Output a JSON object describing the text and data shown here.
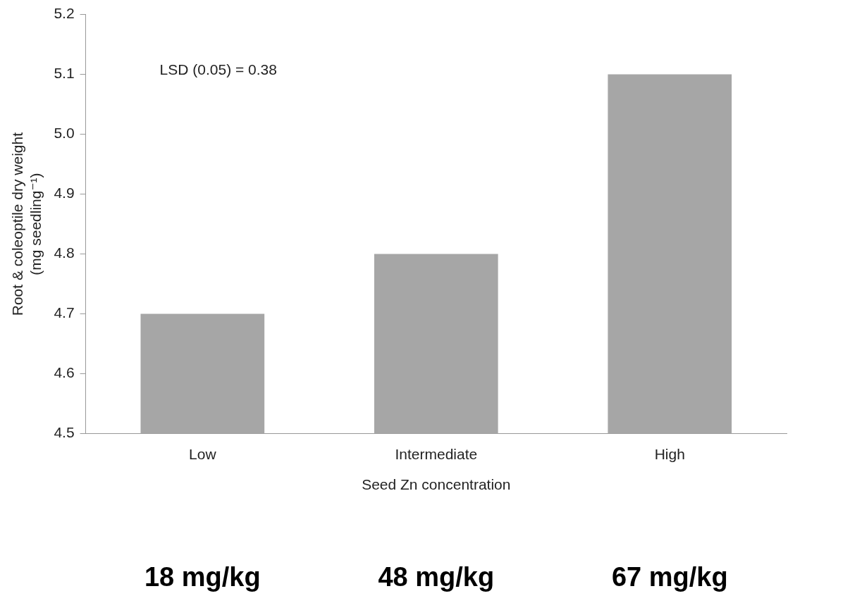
{
  "chart_data": {
    "type": "bar",
    "xlabel": "Seed Zn concentration",
    "ylabel": "Root & coleoptile dry weight\n(mg seedling⁻¹)",
    "categories": [
      "Low",
      "Intermediate",
      "High"
    ],
    "values": [
      4.7,
      4.8,
      5.1
    ],
    "color": "#a6a6a6",
    "ylim": [
      4.5,
      5.2
    ],
    "yticks": [
      4.5,
      4.6,
      4.7,
      4.8,
      4.9,
      {
        "value": 5,
        "label": "5.0"
      },
      5.1,
      5.2
    ],
    "grid": false,
    "legend": false,
    "annotations": [
      "LSD (0.05) = 0.38",
      "18 mg/kg",
      "48 mg/kg",
      "67 mg/kg"
    ]
  }
}
